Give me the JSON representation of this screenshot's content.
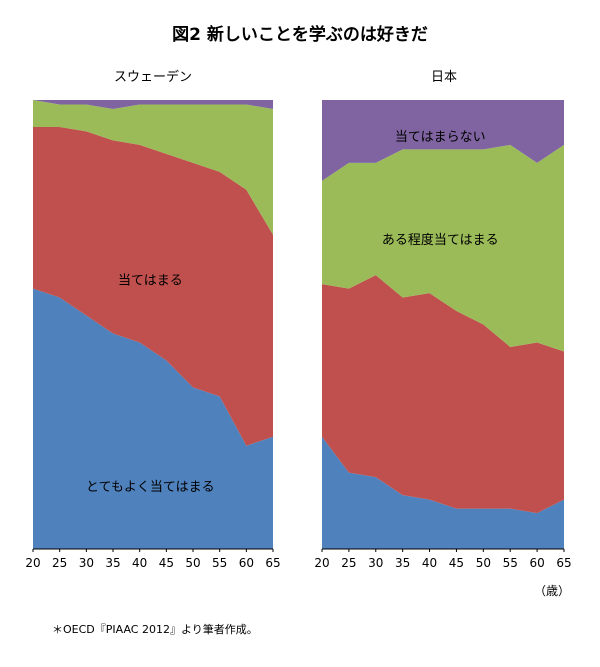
{
  "title": "図2  新しいことを学ぶのは好きだ",
  "unit_label": "（歳）",
  "source_note": "＊OECD『PIAAC 2012』より筆者作成。",
  "colors": {
    "strongly_agree": "#4f81bd",
    "agree": "#c0504d",
    "somewhat_agree": "#9bbb59",
    "disagree": "#8064a2"
  },
  "chart_data": [
    {
      "type": "area",
      "title": "スウェーデン",
      "xlabel": "",
      "ylabel": "",
      "xlim": [
        20,
        65
      ],
      "ylim": [
        0,
        100
      ],
      "stacked": true,
      "grid": false,
      "legend": "none",
      "x": [
        20,
        25,
        30,
        35,
        40,
        45,
        50,
        55,
        60,
        65
      ],
      "series": [
        {
          "name": "とてもよく当てはまる",
          "color_key": "strongly_agree",
          "values": [
            58,
            56,
            52,
            48,
            46,
            42,
            36,
            34,
            23,
            25
          ]
        },
        {
          "name": "当てはまる",
          "color_key": "agree",
          "values": [
            36,
            38,
            41,
            43,
            44,
            46,
            50,
            50,
            57,
            45
          ]
        },
        {
          "name": "",
          "color_key": "somewhat_agree",
          "values": [
            6,
            5,
            6,
            7,
            9,
            11,
            13,
            15,
            19,
            28
          ]
        },
        {
          "name": "",
          "color_key": "disagree",
          "values": [
            0,
            1,
            1,
            2,
            1,
            1,
            1,
            1,
            1,
            2
          ]
        }
      ],
      "tick_labels": [
        "20",
        "25",
        "30",
        "35",
        "40",
        "45",
        "50",
        "55",
        "60",
        "65"
      ]
    },
    {
      "type": "area",
      "title": "日本",
      "xlabel": "",
      "ylabel": "",
      "xlim": [
        20,
        65
      ],
      "ylim": [
        0,
        100
      ],
      "stacked": true,
      "grid": false,
      "legend": "none",
      "x": [
        20,
        25,
        30,
        35,
        40,
        45,
        50,
        55,
        60,
        65
      ],
      "series": [
        {
          "name": "",
          "color_key": "strongly_agree",
          "values": [
            25,
            17,
            16,
            12,
            11,
            9,
            9,
            9,
            8,
            11
          ]
        },
        {
          "name": "",
          "color_key": "agree",
          "values": [
            34,
            41,
            45,
            44,
            46,
            44,
            41,
            36,
            38,
            33
          ]
        },
        {
          "name": "ある程度当てはまる",
          "color_key": "somewhat_agree",
          "values": [
            23,
            28,
            25,
            33,
            32,
            36,
            39,
            45,
            40,
            46
          ]
        },
        {
          "name": "当てはまらない",
          "color_key": "disagree",
          "values": [
            18,
            14,
            14,
            11,
            11,
            11,
            11,
            10,
            14,
            10
          ]
        }
      ],
      "tick_labels": [
        "20",
        "25",
        "30",
        "35",
        "40",
        "45",
        "50",
        "55",
        "60",
        "65"
      ]
    }
  ],
  "region_labels": [
    {
      "panel": 0,
      "text": "当てはまる",
      "at_x": 42,
      "at_y": 60
    },
    {
      "panel": 0,
      "text": "とてもよく当てはまる",
      "at_x": 42,
      "at_y": 14
    },
    {
      "panel": 1,
      "text": "当てはまらない",
      "at_x": 42,
      "at_y": 92
    },
    {
      "panel": 1,
      "text": "ある程度当てはまる",
      "at_x": 42,
      "at_y": 69
    }
  ]
}
